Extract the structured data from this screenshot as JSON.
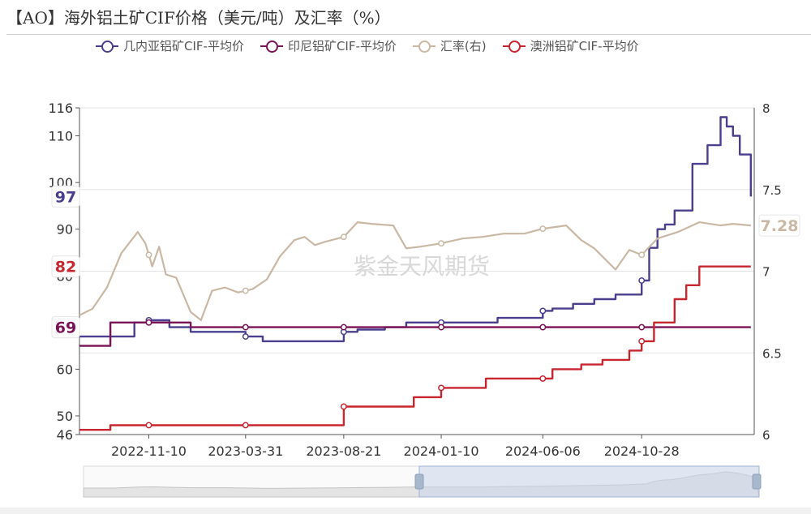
{
  "title": "【AO】海外铝土矿CIF价格（美元/吨）及汇率（%）",
  "watermark": "紫金天风期货",
  "chart_data": {
    "type": "line",
    "title": "【AO】海外铝土矿CIF价格（美元/吨）及汇率（%）",
    "x_ticks": [
      "2022-11-10",
      "2023-03-31",
      "2023-08-21",
      "2024-01-10",
      "2024-06-06",
      "2024-10-28"
    ],
    "x_range": [
      "2022-08-01",
      "2025-04-10"
    ],
    "y_left": {
      "ticks": [
        46,
        50,
        60,
        70,
        80,
        90,
        100,
        110,
        116
      ],
      "range": [
        46,
        116
      ]
    },
    "y_right": {
      "ticks": [
        6,
        6.5,
        7,
        7.5,
        8
      ],
      "range": [
        6,
        8
      ]
    },
    "legend_position": "top",
    "grid": true,
    "series": [
      {
        "name": "几内亚铝矿CIF-平均价",
        "axis": "left",
        "color": "#4a3f8f",
        "end_label": "97",
        "step": true,
        "x": [
          "2022-08-01",
          "2022-09-15",
          "2022-10-20",
          "2022-11-10",
          "2022-12-10",
          "2023-01-10",
          "2023-03-01",
          "2023-03-31",
          "2023-04-25",
          "2023-08-21",
          "2023-09-10",
          "2023-10-20",
          "2023-11-20",
          "2024-01-10",
          "2024-03-01",
          "2024-04-01",
          "2024-06-06",
          "2024-06-20",
          "2024-07-20",
          "2024-08-20",
          "2024-09-20",
          "2024-10-28",
          "2024-11-08",
          "2024-11-20",
          "2024-12-01",
          "2024-12-15",
          "2025-01-10",
          "2025-02-01",
          "2025-02-20",
          "2025-03-01",
          "2025-03-10",
          "2025-03-20",
          "2025-04-05"
        ],
        "y": [
          67,
          67,
          70,
          70.5,
          69,
          68,
          68,
          67,
          66,
          68,
          68.5,
          69,
          70,
          70,
          70,
          71,
          72.5,
          73,
          74,
          75,
          76,
          79,
          86,
          90,
          91,
          94,
          104,
          108,
          114,
          112,
          110,
          106,
          97
        ]
      },
      {
        "name": "印尼铝矿CIF-平均价",
        "axis": "left",
        "color": "#7a1256",
        "end_label": "69",
        "step": true,
        "x": [
          "2022-08-01",
          "2022-09-15",
          "2023-01-10",
          "2025-04-05"
        ],
        "y": [
          65,
          70,
          69,
          69
        ]
      },
      {
        "name": "汇率(右)",
        "axis": "right",
        "color": "#c9b8a4",
        "end_label": "7.28",
        "step": false,
        "x": [
          "2022-08-01",
          "2022-08-20",
          "2022-09-10",
          "2022-10-01",
          "2022-10-25",
          "2022-11-05",
          "2022-11-15",
          "2022-11-25",
          "2022-12-05",
          "2022-12-20",
          "2023-01-10",
          "2023-01-25",
          "2023-02-10",
          "2023-03-01",
          "2023-03-20",
          "2023-04-10",
          "2023-05-01",
          "2023-05-20",
          "2023-06-10",
          "2023-06-25",
          "2023-07-10",
          "2023-07-25",
          "2023-08-21",
          "2023-09-10",
          "2023-10-01",
          "2023-11-01",
          "2023-11-20",
          "2023-12-10",
          "2024-01-10",
          "2024-02-10",
          "2024-03-10",
          "2024-04-10",
          "2024-05-10",
          "2024-06-06",
          "2024-07-10",
          "2024-08-01",
          "2024-08-20",
          "2024-09-20",
          "2024-10-10",
          "2024-10-28",
          "2024-11-20",
          "2024-12-20",
          "2025-01-20",
          "2025-02-20",
          "2025-03-10",
          "2025-04-05"
        ],
        "y": [
          6.73,
          6.77,
          6.9,
          7.11,
          7.24,
          7.17,
          7.03,
          7.15,
          6.98,
          6.96,
          6.75,
          6.7,
          6.88,
          6.9,
          6.87,
          6.89,
          6.95,
          7.09,
          7.19,
          7.21,
          7.16,
          7.18,
          7.21,
          7.3,
          7.29,
          7.28,
          7.14,
          7.15,
          7.17,
          7.2,
          7.21,
          7.23,
          7.23,
          7.26,
          7.28,
          7.19,
          7.14,
          7.01,
          7.13,
          7.1,
          7.2,
          7.24,
          7.3,
          7.28,
          7.29,
          7.28
        ]
      },
      {
        "name": "澳洲铝矿CIF-平均价",
        "axis": "left",
        "color": "#c8262f",
        "end_label": "82",
        "step": true,
        "x": [
          "2022-08-01",
          "2022-09-15",
          "2023-08-21",
          "2023-12-01",
          "2024-01-10",
          "2024-03-15",
          "2024-06-06",
          "2024-06-20",
          "2024-08-01",
          "2024-09-01",
          "2024-10-10",
          "2024-10-28",
          "2024-11-15",
          "2024-12-15",
          "2025-01-01",
          "2025-01-20",
          "2025-04-05"
        ],
        "y": [
          47,
          48,
          52,
          54,
          56,
          58,
          58,
          60,
          61,
          62,
          64,
          66,
          70,
          75,
          78,
          82,
          82
        ]
      }
    ]
  }
}
